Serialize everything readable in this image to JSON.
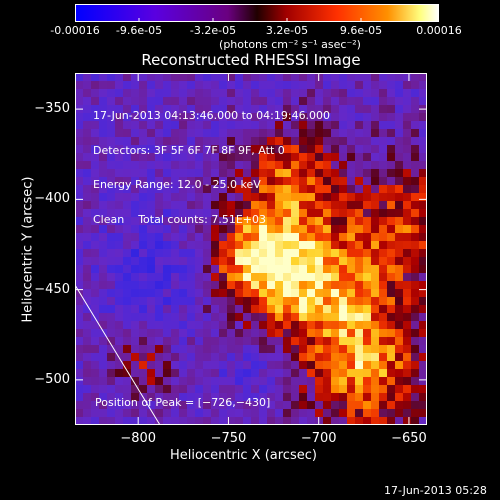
{
  "colorbar": {
    "ticks": [
      "-0.00016",
      "-9.6e-05",
      "-3.2e-05",
      "3.2e-05",
      "9.6e-05",
      "0.00016"
    ],
    "unit_label": "(photons cm⁻² s⁻¹ asec⁻²)",
    "colors": [
      "#0000ff",
      "#5a00e0",
      "#8000a0",
      "#a00000",
      "#ff3000",
      "#ff9000",
      "#ffff80",
      "#ffffff"
    ]
  },
  "chart_data": {
    "type": "heatmap",
    "title": "Reconstructed RHESSI Image",
    "xlabel": "Heliocentric X (arcsec)",
    "ylabel": "Heliocentric Y (arcsec)",
    "xlim": [
      -835,
      -640
    ],
    "ylim": [
      -525,
      -330
    ],
    "x_ticks": [
      -800,
      -750,
      -700,
      -650
    ],
    "y_ticks": [
      -350,
      -400,
      -450,
      -500
    ],
    "x_tick_labels": [
      "−800",
      "−750",
      "−700",
      "−650"
    ],
    "y_tick_labels": [
      "−350",
      "−400",
      "−450",
      "−500"
    ],
    "peak_position": [
      -726,
      -430
    ],
    "info_lines": [
      "17-Jun-2013 04:13:46.000 to 04:19:46.000",
      "Detectors: 3F 5F 6F 7F 8F 9F, Att 0",
      "Energy Range: 12.0 - 25.0 keV",
      "Clean    Total counts: 7.51E+03"
    ],
    "peak_label": "Position of Peak = [−726,−430]"
  },
  "timestamp": "17-Jun-2013 05:28"
}
